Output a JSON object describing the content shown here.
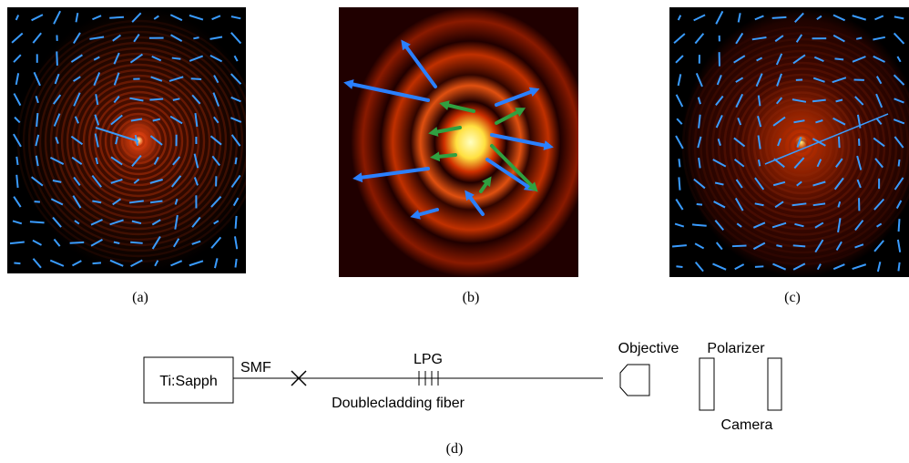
{
  "panels": {
    "a": {
      "label": "(a)"
    },
    "b": {
      "label": "(b)"
    },
    "c": {
      "label": "(c)"
    },
    "d": {
      "label": "(d)"
    }
  },
  "setup": {
    "source": "Ti:Sapph",
    "smf": "SMF",
    "lpg": "LPG",
    "fiber": "Doublecladding fiber",
    "objective": "Objective",
    "polarizer": "Polarizer",
    "camera": "Camera"
  }
}
